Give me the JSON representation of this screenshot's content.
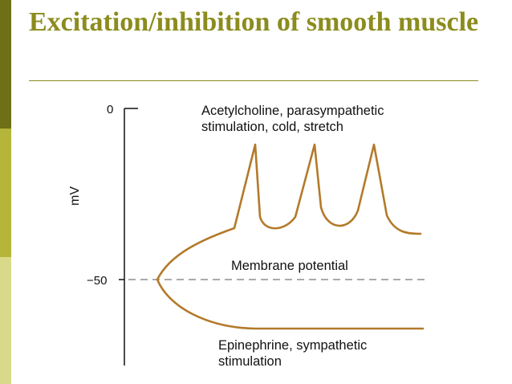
{
  "slide": {
    "title": "Excitation/inhibition of smooth muscle"
  },
  "diagram": {
    "y_axis_label": "mV",
    "tick_top": "0",
    "tick_bottom": "−50",
    "excitation_label_line1": "Acetylcholine, parasympathetic",
    "excitation_label_line2": "stimulation, cold, stretch",
    "resting_label": "Membrane potential",
    "inhibition_label_line1": "Epinephrine, sympathetic",
    "inhibition_label_line2": "stimulation"
  },
  "colors": {
    "accent": "#8c8c1e",
    "trace": "#b37a2a",
    "sidebar_dark": "#6f6f17",
    "sidebar_mid": "#b5b53a",
    "sidebar_light": "#d9d98a"
  }
}
